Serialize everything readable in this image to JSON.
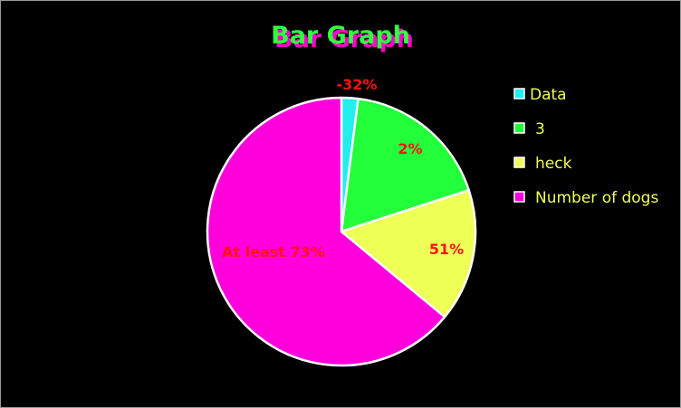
{
  "chart_data": {
    "type": "pie",
    "title": "Bar Graph",
    "slices": [
      {
        "name": "Data",
        "value": 2,
        "label": "-32%",
        "color": "#22eeee"
      },
      {
        "name": "3",
        "value": 18,
        "label": "2%",
        "color": "#22ff3a"
      },
      {
        "name": "heck",
        "value": 16,
        "label": "51%",
        "color": "#eeff55"
      },
      {
        "name": "Number of dogs",
        "value": 64,
        "label": "At least 73%",
        "color": "#ff00dd"
      }
    ],
    "legend_position": "right",
    "label_color": "#ff1111",
    "title_color": "#33ff44",
    "title_shadow_color": "#ff00cc",
    "legend_text_color": "#eeff55",
    "background": "#000000"
  }
}
